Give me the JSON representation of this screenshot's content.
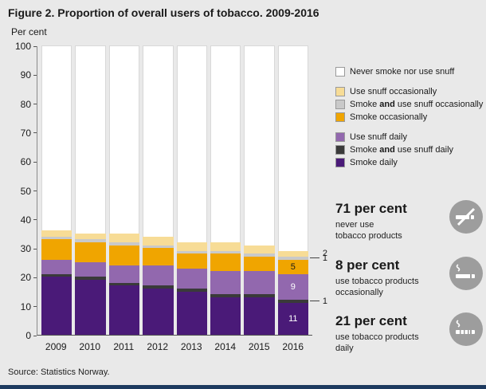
{
  "header": {
    "title": "Figure 2. Proportion of overall users of tobacco. 2009-2016",
    "y_axis_title": "Per cent"
  },
  "source": "Source: Statistics Norway.",
  "colors": {
    "background": "#e9e9e9",
    "footer_bar": "#1d3a5f"
  },
  "legend": {
    "items": [
      {
        "label": "Never smoke nor use snuff",
        "color": "#ffffff"
      },
      {
        "label": "Use snuff occasionally",
        "color": "#f7dc96"
      },
      {
        "pre": "Smoke ",
        "bold": "and",
        "post": " use snuff occasionally",
        "color": "#c9c9c9"
      },
      {
        "label": "Smoke occasionally",
        "color": "#f0a500"
      },
      {
        "label": "Use snuff daily",
        "color": "#9268ae"
      },
      {
        "pre": "Smoke ",
        "bold": "and",
        "post": " use snuff daily",
        "color": "#3a3a3a"
      },
      {
        "label": "Smoke daily",
        "color": "#4a1a78"
      }
    ]
  },
  "stats": [
    {
      "value": "71 per cent",
      "line1": "never use",
      "line2": "tobacco products",
      "icon": "no-smoking-icon"
    },
    {
      "value": "8 per cent",
      "line1": "use tobacco products",
      "line2": "occasionally",
      "icon": "cigarette-icon"
    },
    {
      "value": "21 per cent",
      "line1": "use tobacco products",
      "line2": "daily",
      "icon": "cigarette-lit-icon"
    }
  ],
  "chart_data": {
    "type": "bar",
    "subtype": "stacked",
    "title": "Figure 2. Proportion of overall users of tobacco. 2009-2016",
    "xlabel": "",
    "ylabel": "Per cent",
    "ylim": [
      0,
      100
    ],
    "yticks": [
      0,
      10,
      20,
      30,
      40,
      50,
      60,
      70,
      80,
      90,
      100
    ],
    "grid": false,
    "legend_position": "right",
    "categories": [
      "2009",
      "2010",
      "2011",
      "2012",
      "2013",
      "2014",
      "2015",
      "2016"
    ],
    "series": [
      {
        "name": "Smoke daily",
        "color": "#4a1a78",
        "values": [
          20,
          19,
          17,
          16,
          15,
          13,
          13,
          11
        ]
      },
      {
        "name": "Smoke and use snuff daily",
        "color": "#3a3a3a",
        "values": [
          1,
          1,
          1,
          1,
          1,
          1,
          1,
          1
        ]
      },
      {
        "name": "Use snuff daily",
        "color": "#9268ae",
        "values": [
          5,
          5,
          6,
          7,
          7,
          8,
          8,
          9
        ]
      },
      {
        "name": "Smoke occasionally",
        "color": "#f0a500",
        "values": [
          7,
          7,
          7,
          6,
          5,
          6,
          5,
          5
        ]
      },
      {
        "name": "Smoke and use snuff occasionally",
        "color": "#c9c9c9",
        "values": [
          1,
          1,
          1,
          1,
          1,
          1,
          1,
          1
        ]
      },
      {
        "name": "Use snuff occasionally",
        "color": "#f7dc96",
        "values": [
          2,
          2,
          3,
          3,
          3,
          3,
          3,
          2
        ]
      },
      {
        "name": "Never smoke nor use snuff",
        "color": "#ffffff",
        "values": [
          64,
          65,
          65,
          66,
          68,
          68,
          69,
          71
        ]
      }
    ],
    "value_labels_last_category": [
      {
        "series_index": 0,
        "text": "11",
        "style": "inside-light"
      },
      {
        "series_index": 1,
        "text": "1",
        "style": "outside-line"
      },
      {
        "series_index": 2,
        "text": "9",
        "style": "inside-light"
      },
      {
        "series_index": 3,
        "text": "5",
        "style": "inside-dark"
      },
      {
        "series_index": 4,
        "text": "1",
        "style": "outside-line"
      },
      {
        "series_index": 5,
        "text": "2",
        "style": "outside"
      }
    ]
  }
}
